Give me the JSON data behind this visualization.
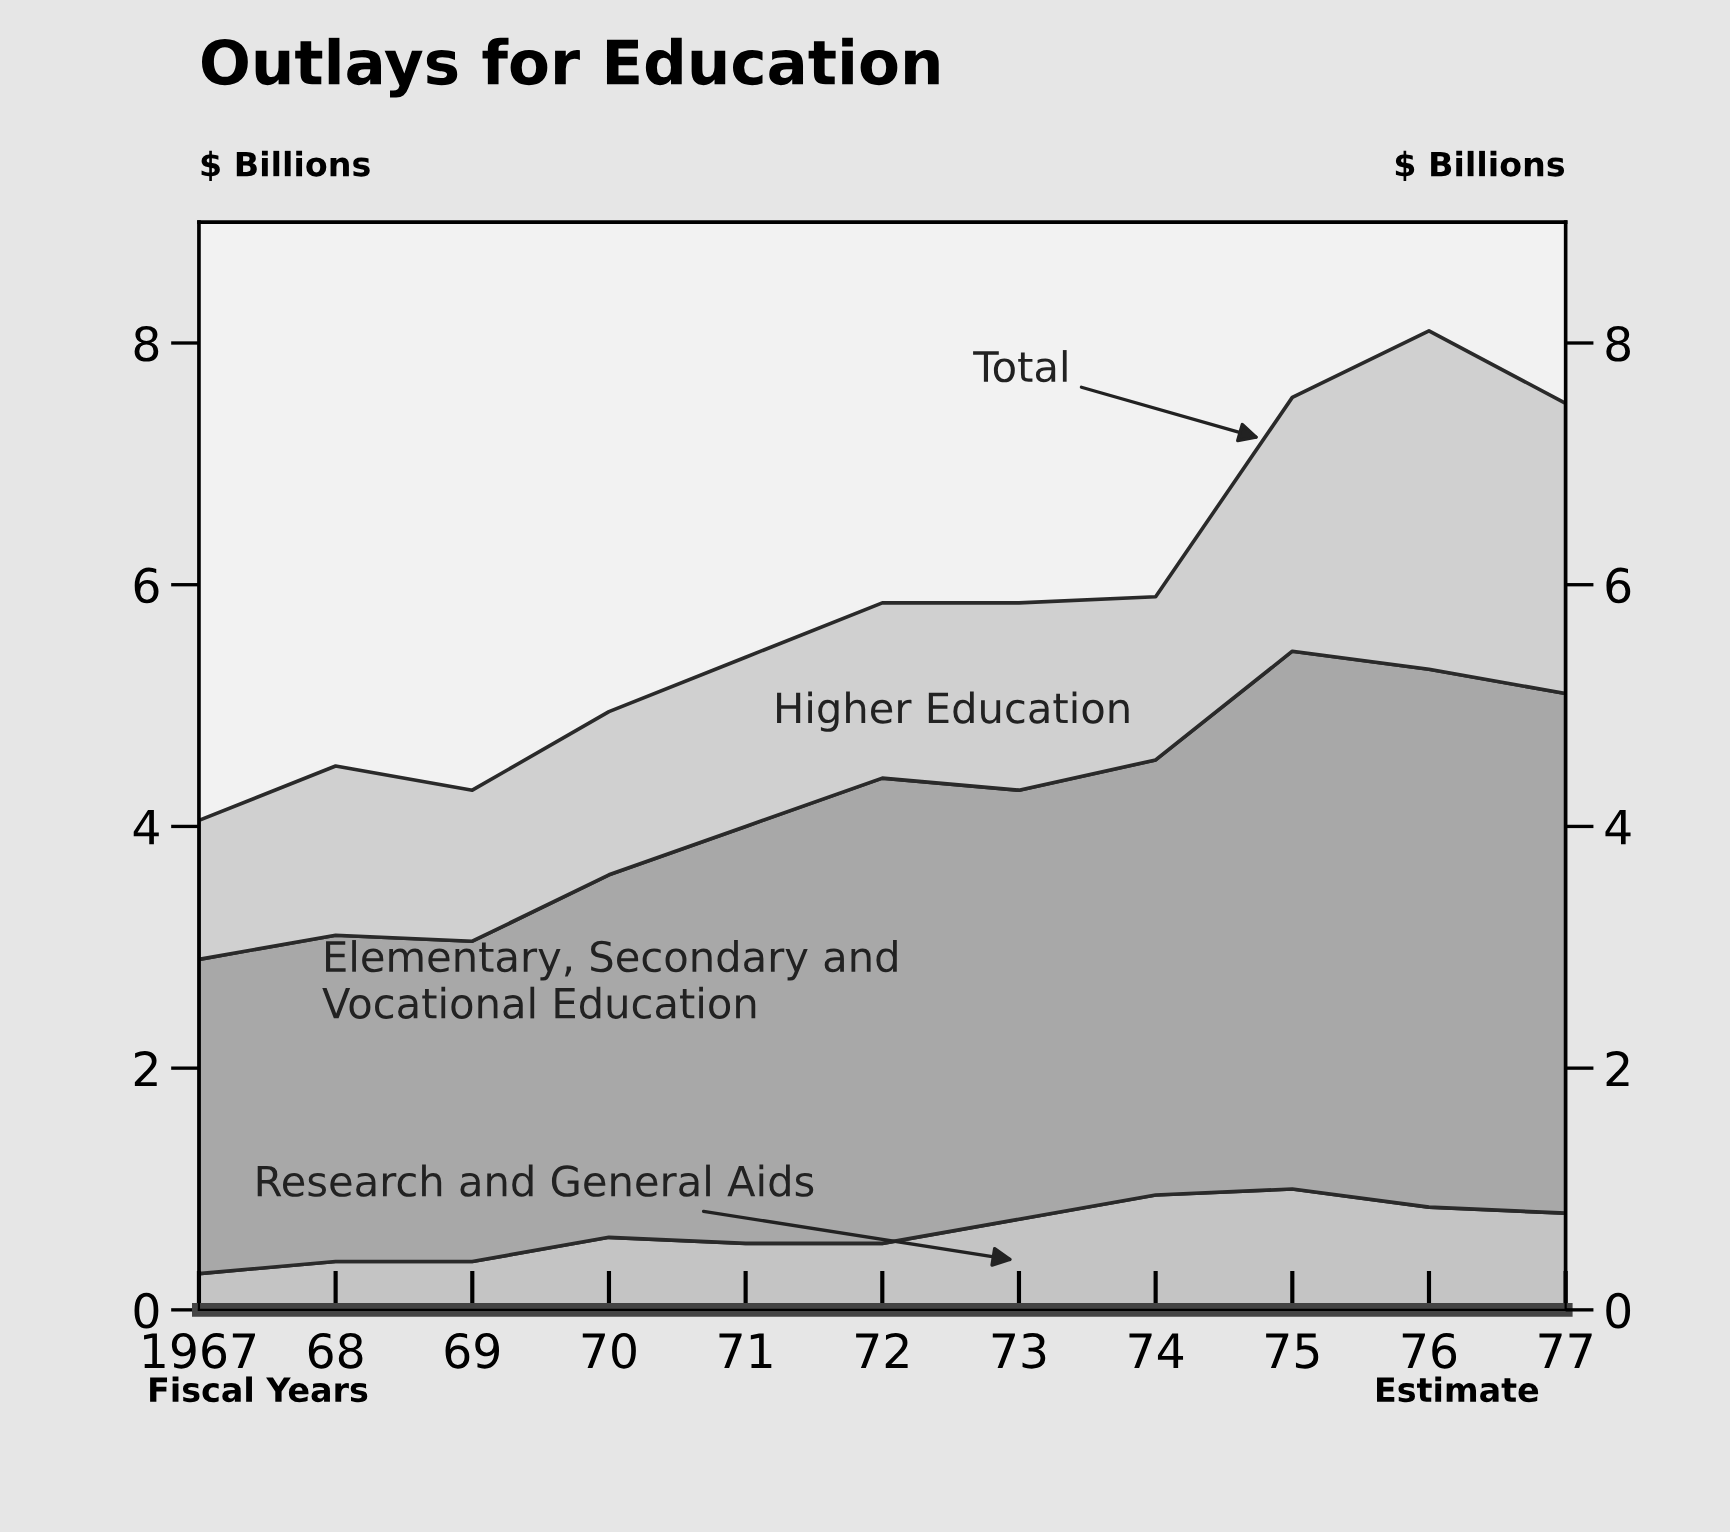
{
  "chart_data": {
    "type": "area",
    "stacked": true,
    "title": "Outlays for Education",
    "ylabel": "$ Billions",
    "y2label": "$ Billions",
    "x": [
      1967,
      1968,
      1969,
      1970,
      1971,
      1972,
      1973,
      1974,
      1975,
      1976,
      1977
    ],
    "xlim": [
      1967,
      1977
    ],
    "xticks": [
      {
        "value": 1967,
        "label": "1967"
      },
      {
        "value": 1968,
        "label": "68"
      },
      {
        "value": 1969,
        "label": "69"
      },
      {
        "value": 1970,
        "label": "70"
      },
      {
        "value": 1971,
        "label": "71"
      },
      {
        "value": 1972,
        "label": "72"
      },
      {
        "value": 1973,
        "label": "73"
      },
      {
        "value": 1974,
        "label": "74"
      },
      {
        "value": 1975,
        "label": "75"
      },
      {
        "value": 1976,
        "label": "76"
      },
      {
        "value": 1977,
        "label": "77"
      }
    ],
    "ylim": [
      0,
      9
    ],
    "yticks": [
      0,
      2,
      4,
      6,
      8
    ],
    "y2lim": [
      0,
      9
    ],
    "y2ticks": [
      0,
      2,
      4,
      6,
      8
    ],
    "series": [
      {
        "name": "Research and General Aids",
        "color": "#c4c4c4",
        "values": [
          0.3,
          0.4,
          0.4,
          0.6,
          0.55,
          0.55,
          0.75,
          0.95,
          1.0,
          0.85,
          0.8
        ]
      },
      {
        "name": "Elementary, Secondary and\nVocational Education",
        "color": "#a8a8a8",
        "values": [
          2.6,
          2.7,
          2.65,
          3.0,
          3.45,
          3.85,
          3.55,
          3.6,
          4.45,
          4.45,
          4.3
        ]
      },
      {
        "name": "Higher Education",
        "color": "#d0d0d0",
        "values": [
          1.15,
          1.4,
          1.25,
          1.35,
          1.4,
          1.45,
          1.55,
          1.35,
          2.1,
          2.8,
          2.4
        ]
      }
    ],
    "annotations": [
      {
        "text": "Total",
        "x": 1974.8,
        "y": 7.2
      },
      "Fiscal Years",
      "Estimate"
    ],
    "grid": false,
    "legend": false
  }
}
